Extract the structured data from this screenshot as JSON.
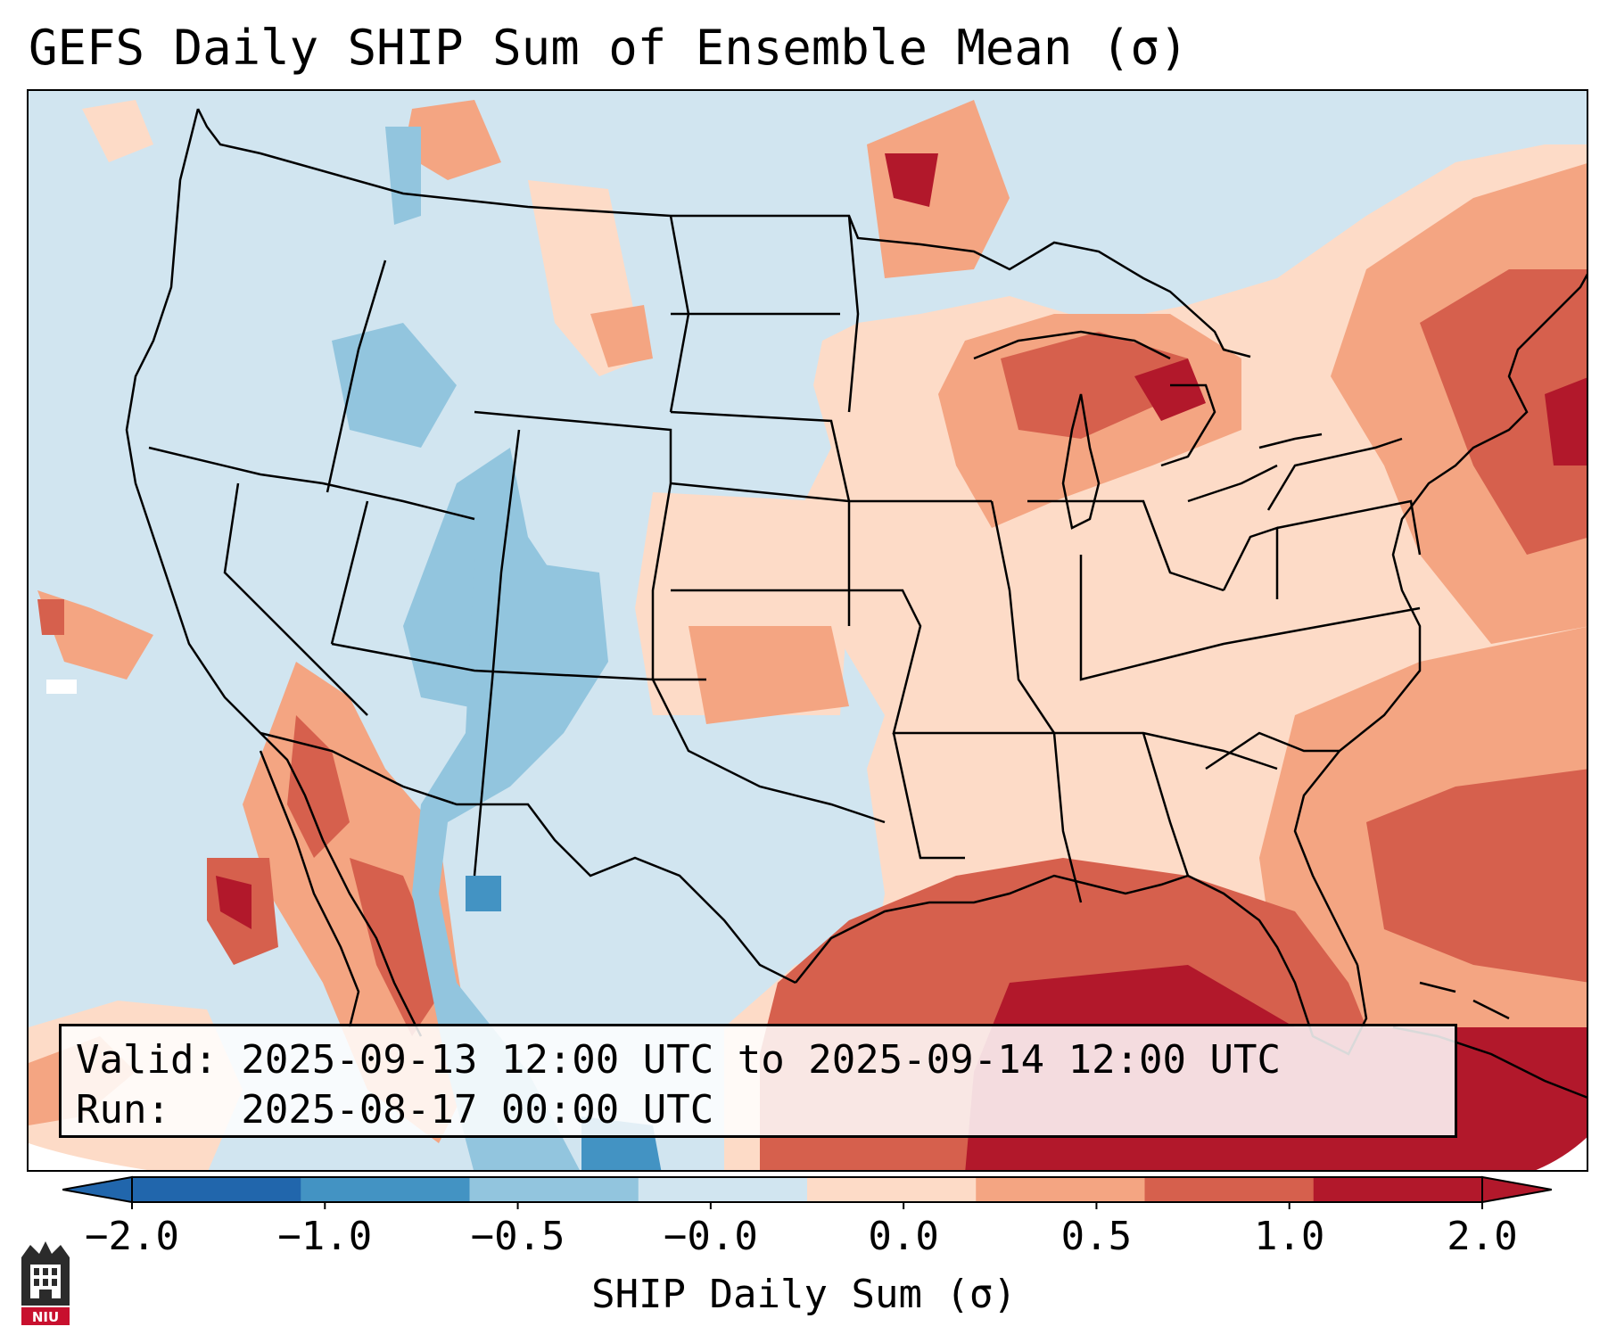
{
  "title": "GEFS Daily SHIP Sum of Ensemble Mean (σ)",
  "info": {
    "valid_line": "Valid: 2025-09-13 12:00 UTC to 2025-09-14 12:00 UTC",
    "run_line": "Run:   2025-08-17 00:00 UTC"
  },
  "colorbar": {
    "label": "SHIP Daily Sum (σ)",
    "tick_labels": [
      "−2.0",
      "−1.0",
      "−0.5",
      "−0.0",
      "0.0",
      "0.5",
      "1.0",
      "2.0"
    ],
    "colors": [
      "#2166ac",
      "#4393c3",
      "#92c5de",
      "#d1e5f0",
      "#fddbc7",
      "#f4a582",
      "#d6604d",
      "#b2182b"
    ],
    "extend": "both"
  },
  "logo": {
    "text": "NIU"
  }
}
